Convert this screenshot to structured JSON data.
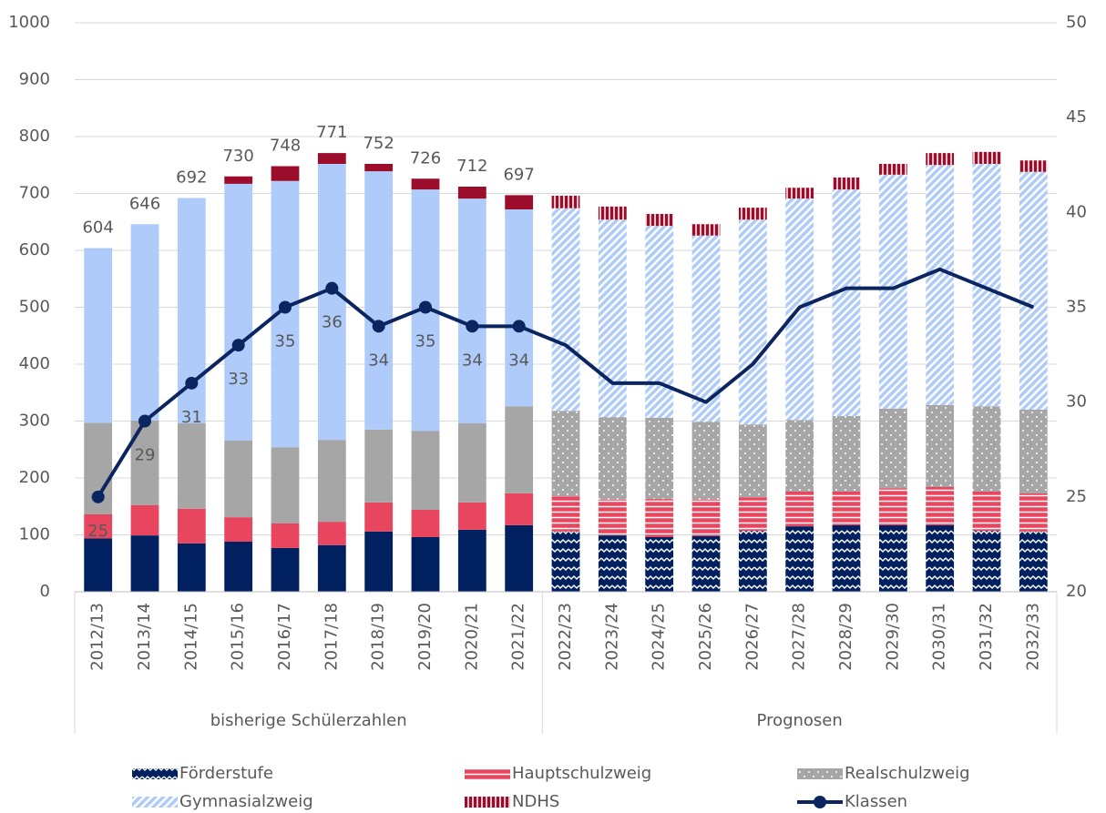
{
  "chart_data": {
    "type": "stacked-bar-line",
    "categories": [
      "2012/13",
      "2013/14",
      "2014/15",
      "2015/16",
      "2016/17",
      "2017/18",
      "2018/19",
      "2019/20",
      "2020/21",
      "2021/22",
      "2022/23",
      "2023/24",
      "2024/25",
      "2025/26",
      "2026/27",
      "2027/28",
      "2028/29",
      "2029/30",
      "2030/31",
      "2031/32",
      "2032/33"
    ],
    "groups": [
      {
        "label": "bisherige Schülerzahlen",
        "start": "2012/13",
        "end": "2021/22",
        "patterned": false
      },
      {
        "label": "Prognosen",
        "start": "2022/23",
        "end": "2032/33",
        "patterned": true
      }
    ],
    "series": [
      {
        "name": "Förderstufe",
        "color": "#002060",
        "pattern": "zigzag",
        "values": [
          94,
          99,
          85,
          88,
          77,
          82,
          106,
          96,
          109,
          117,
          106,
          99,
          96,
          98,
          107,
          115,
          117,
          117,
          117,
          107,
          106
        ]
      },
      {
        "name": "Hauptschulzweig",
        "color": "#e8455e",
        "pattern": "hlines",
        "values": [
          42,
          53,
          61,
          43,
          43,
          41,
          51,
          48,
          48,
          56,
          62,
          63,
          67,
          64,
          59,
          61,
          59,
          65,
          67,
          69,
          67
        ]
      },
      {
        "name": "Realschulzweig",
        "color": "#a6a6a6",
        "pattern": "dots",
        "values": [
          161,
          149,
          150,
          135,
          134,
          144,
          128,
          139,
          139,
          153,
          150,
          145,
          143,
          137,
          128,
          126,
          133,
          140,
          144,
          150,
          147
        ]
      },
      {
        "name": "Gymnasialzweig",
        "color": "#aecbfa",
        "pattern": "diagonal",
        "values": [
          307,
          345,
          396,
          451,
          468,
          485,
          454,
          424,
          395,
          346,
          356,
          347,
          337,
          327,
          360,
          389,
          398,
          411,
          422,
          426,
          418
        ]
      },
      {
        "name": "NDHS",
        "color": "#9b0d2a",
        "pattern": "vlines",
        "values": [
          0,
          0,
          0,
          13,
          26,
          19,
          13,
          19,
          21,
          25,
          22,
          23,
          21,
          20,
          21,
          19,
          21,
          19,
          21,
          21,
          20
        ]
      },
      {
        "name": "Klassen",
        "type": "line",
        "axis": "y2",
        "color": "#0b2560",
        "values": [
          25,
          29,
          31,
          33,
          35,
          36,
          34,
          35,
          34,
          34,
          33,
          31,
          31,
          30,
          32,
          35,
          36,
          36,
          37,
          36,
          35
        ],
        "value_labels": [
          25,
          29,
          31,
          33,
          35,
          36,
          34,
          35,
          34,
          34,
          null,
          null,
          null,
          null,
          null,
          null,
          null,
          null,
          null,
          null,
          null
        ]
      }
    ],
    "total_labels": [
      604,
      646,
      692,
      730,
      748,
      771,
      752,
      726,
      712,
      697,
      null,
      null,
      null,
      null,
      null,
      null,
      null,
      null,
      null,
      null,
      null
    ],
    "ylim": [
      0,
      1000
    ],
    "yticks": [
      0,
      100,
      200,
      300,
      400,
      500,
      600,
      700,
      800,
      900,
      1000
    ],
    "y2lim": [
      20,
      50
    ],
    "y2ticks": [
      20,
      25,
      30,
      35,
      40,
      45,
      50
    ],
    "grid": true,
    "legend": "bottom"
  }
}
